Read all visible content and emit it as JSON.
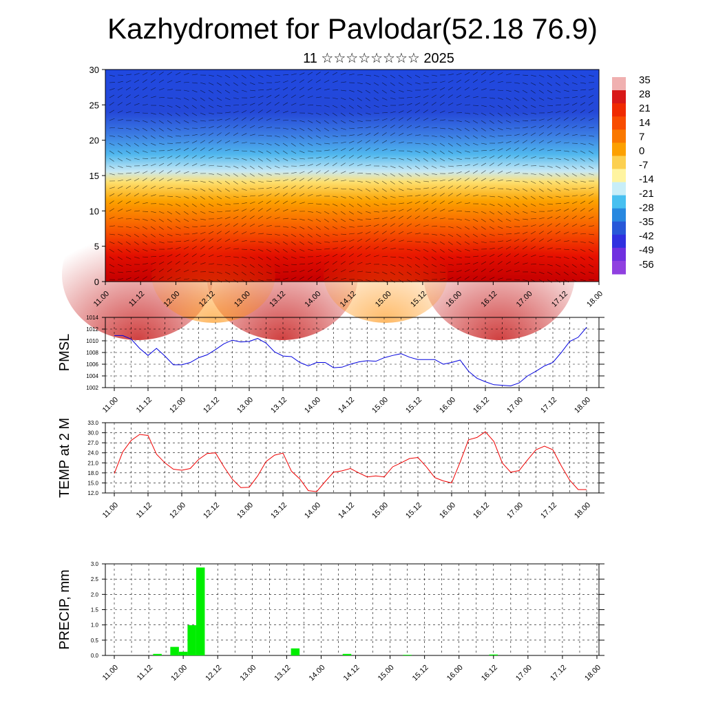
{
  "title": "Kazhydromet for Pavlodar(52.18 76.9)",
  "subtitle": "11 ☆☆☆☆☆☆☆☆ 2025",
  "colors": {
    "pmsl_line": "#0000dd",
    "temp_line": "#ee0000",
    "precip_bar": "#00ee00",
    "grid": "#000000"
  },
  "chart_data": [
    {
      "type": "heatmap",
      "x_ticks": [
        "11.00",
        "11.12",
        "12.00",
        "12.12",
        "13.00",
        "13.12",
        "14.00",
        "14.12",
        "15.00",
        "15.12",
        "16.00",
        "16.12",
        "17.00",
        "17.12",
        "18.00"
      ],
      "y_ticks": [
        "0",
        "5",
        "10",
        "15",
        "20",
        "25",
        "30"
      ],
      "ylim": [
        0,
        30
      ],
      "colorbar_labels": [
        "35",
        "28",
        "21",
        "14",
        "7",
        "0",
        "-7",
        "-14",
        "-21",
        "-28",
        "-35",
        "-42",
        "-49",
        "-56"
      ],
      "colorbar_colors": [
        "#f0b0b0",
        "#d81818",
        "#f02a00",
        "#f84c00",
        "#fa7800",
        "#fca000",
        "#fcd050",
        "#fff4a0",
        "#c8eef8",
        "#48c0f0",
        "#2888e0",
        "#2858d8",
        "#3030e0",
        "#7030e0",
        "#9040e0"
      ],
      "overlay": "wind barbs"
    },
    {
      "type": "line",
      "ylabel": "PMSL",
      "x_ticks": [
        "11.00",
        "11.12",
        "12.00",
        "12.12",
        "13.00",
        "13.12",
        "14.00",
        "14.12",
        "15.00",
        "15.12",
        "16.00",
        "16.12",
        "17.00",
        "17.12",
        "18.00"
      ],
      "y_ticks": [
        "1014",
        "1012",
        "1010",
        "1008",
        "1006",
        "1004",
        "1002"
      ],
      "ylim": [
        1002,
        1014
      ],
      "values": [
        1010.9,
        1010.9,
        1010.3,
        1008.7,
        1007.5,
        1008.7,
        1007.4,
        1005.9,
        1005.9,
        1006.3,
        1007.1,
        1007.6,
        1008.5,
        1009.5,
        1010.1,
        1009.8,
        1009.9,
        1010.4,
        1009.6,
        1008.1,
        1007.4,
        1007.3,
        1006.3,
        1005.7,
        1006.3,
        1006.3,
        1005.4,
        1005.5,
        1006.0,
        1006.4,
        1006.6,
        1006.5,
        1007.1,
        1007.5,
        1007.8,
        1007.2,
        1006.8,
        1006.8,
        1006.8,
        1006.0,
        1006.3,
        1006.7,
        1004.8,
        1003.6,
        1003.0,
        1002.5,
        1002.4,
        1002.3,
        1002.8,
        1004.0,
        1004.8,
        1005.7,
        1006.3,
        1008.0,
        1009.9,
        1010.6,
        1012.3
      ]
    },
    {
      "type": "line",
      "ylabel": "TEMP at 2 M",
      "x_ticks": [
        "11.00",
        "11.12",
        "12.00",
        "12.12",
        "13.00",
        "13.12",
        "14.00",
        "14.12",
        "15.00",
        "15.12",
        "16.00",
        "16.12",
        "17.00",
        "17.12",
        "18.00"
      ],
      "y_ticks": [
        "33.0",
        "30.0",
        "27.0",
        "24.0",
        "21.0",
        "18.0",
        "15.0",
        "12.0"
      ],
      "ylim": [
        12,
        33
      ],
      "values": [
        17.8,
        24.3,
        27.7,
        29.5,
        29.2,
        23.6,
        21.0,
        19.1,
        18.8,
        19.3,
        22.0,
        23.8,
        24.0,
        19.8,
        16.1,
        13.6,
        13.7,
        17.1,
        21.4,
        23.3,
        23.9,
        18.5,
        16.2,
        12.7,
        12.4,
        15.4,
        18.2,
        18.6,
        19.3,
        18.0,
        16.8,
        17.1,
        16.8,
        19.8,
        21.0,
        22.3,
        22.6,
        19.8,
        16.6,
        15.6,
        15.0,
        21.2,
        27.9,
        28.6,
        30.3,
        27.4,
        21.0,
        18.2,
        18.7,
        21.9,
        24.9,
        26.0,
        24.9,
        20.1,
        15.8,
        13.0,
        13.0
      ]
    },
    {
      "type": "bar",
      "ylabel": "PRECIP, mm",
      "x_ticks": [
        "11.00",
        "11.12",
        "12.00",
        "12.12",
        "13.00",
        "13.12",
        "14.00",
        "14.12",
        "15.00",
        "15.12",
        "16.00",
        "16.12",
        "17.00",
        "17.12",
        "18.00"
      ],
      "y_ticks": [
        "3.0",
        "2.5",
        "2.0",
        "1.5",
        "1.0",
        "0.5",
        "0.0"
      ],
      "ylim": [
        0,
        3
      ],
      "values": [
        0,
        0,
        0,
        0,
        0,
        0.05,
        0,
        0.28,
        0.12,
        0.99,
        2.88,
        0,
        0,
        0,
        0,
        0,
        0,
        0,
        0,
        0,
        0,
        0.23,
        0,
        0,
        0,
        0,
        0,
        0.05,
        0,
        0,
        0,
        0,
        0,
        0,
        0.02,
        0,
        0,
        0,
        0,
        0,
        0,
        0,
        0,
        0,
        0.03,
        0,
        0,
        0,
        0,
        0,
        0,
        0,
        0,
        0,
        0,
        0,
        0
      ]
    }
  ]
}
